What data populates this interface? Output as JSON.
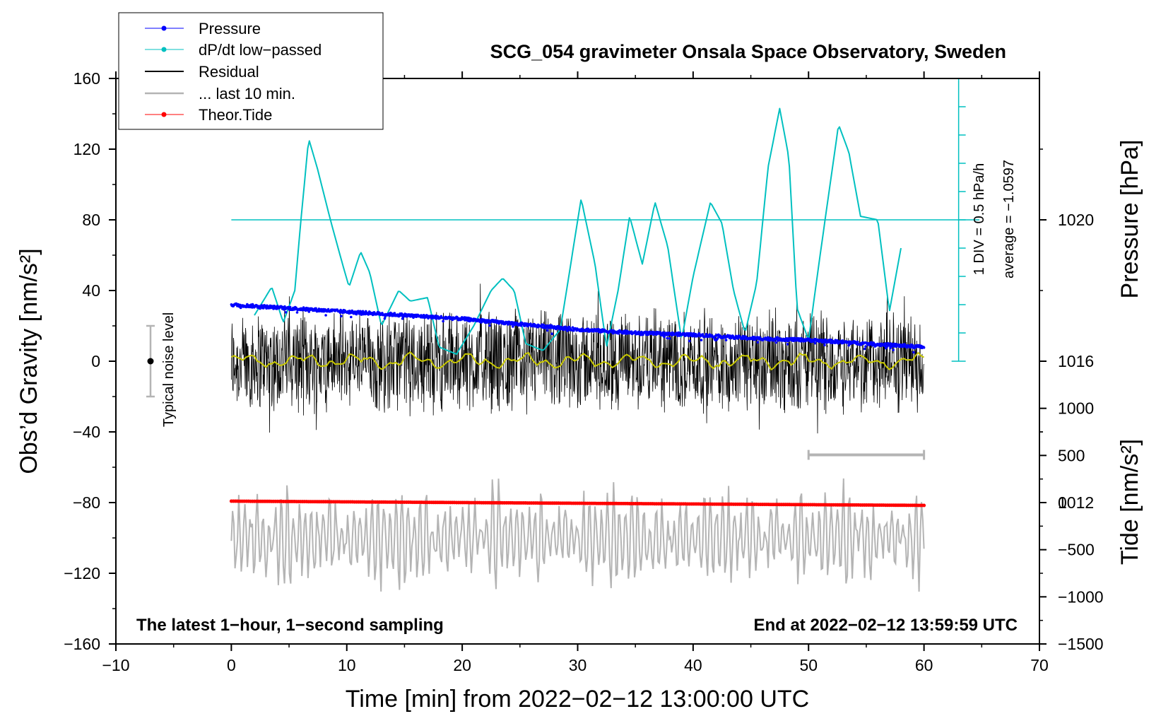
{
  "chart_data": {
    "type": "line",
    "title": "SCG_054 gravimeter Onsala Space Observatory, Sweden",
    "xlabel": "Time [min] from 2022−02−12 13:00:00 UTC",
    "ylabel_left": "Obs’d Gravity [nm/s²]",
    "ylabel_pressure": "Pressure [hPa]",
    "ylabel_tide": "Tide [nm/s²]",
    "xlim": [
      -10,
      70
    ],
    "ylim_gravity": [
      -160,
      160
    ],
    "ylim_pressure": [
      1008,
      1024
    ],
    "ylim_tide": [
      -1500,
      4500
    ],
    "x_ticks": [
      "−10",
      "0",
      "10",
      "20",
      "30",
      "40",
      "50",
      "60",
      "70"
    ],
    "y_ticks_gravity": [
      "160",
      "120",
      "80",
      "40",
      "0",
      "−40",
      "−80",
      "−120",
      "−160"
    ],
    "y_ticks_pressure": [
      "1020",
      "1016",
      "1012"
    ],
    "y_ticks_tide": [
      "1000",
      "500",
      "0",
      "−500",
      "−1000",
      "−1500"
    ],
    "legend": [
      "Pressure",
      "dP/dt low−passed",
      "Residual",
      "... last 10 min.",
      "Theor.Tide"
    ],
    "annotations": {
      "noise_label": "Typical noise level",
      "dpdt_scale": "1 DIV = 0.5 hPa/h",
      "dpdt_average": "average = −1.0597",
      "bottom_left": "The latest 1−hour, 1−second sampling",
      "bottom_right": "End at 2022−02−12 13:59:59 UTC"
    },
    "last_window_min": [
      50,
      60
    ],
    "noise_level_gravity": [
      -20,
      20
    ],
    "dpdt_baseline_gravity": 80,
    "dpdt_axis_range_gravity": [
      0,
      160
    ],
    "series": [
      {
        "name": "Pressure",
        "color": "#0000ff",
        "axis": "pressure",
        "x": [
          0,
          5,
          10,
          15,
          20,
          25,
          30,
          35,
          40,
          45,
          50,
          55,
          60
        ],
        "values": [
          1017.6,
          1017.5,
          1017.4,
          1017.3,
          1017.2,
          1017.05,
          1016.9,
          1016.8,
          1016.75,
          1016.65,
          1016.6,
          1016.5,
          1016.4
        ]
      },
      {
        "name": "dP/dt low−passed",
        "color": "#00c0c0",
        "axis": "gravity",
        "x": [
          2,
          3.5,
          4.5,
          5.5,
          6,
          6.7,
          7.5,
          8.5,
          9.5,
          10.2,
          11.2,
          12,
          13,
          14.5,
          15.5,
          17,
          18,
          19.5,
          21,
          22.5,
          23.5,
          24.5,
          25.5,
          27,
          28.5,
          30.3,
          31.5,
          32.5,
          33.5,
          34.5,
          35.6,
          36.7,
          37.8,
          39,
          40,
          41.5,
          42.5,
          43.5,
          44.5,
          45.5,
          46.5,
          47.5,
          48.3,
          49,
          50,
          51,
          52.6,
          53.5,
          54.5,
          56,
          57,
          58
        ],
        "values": [
          26,
          42,
          22,
          40,
          78,
          126,
          108,
          82,
          58,
          42,
          62,
          50,
          20,
          40,
          34,
          36,
          8,
          4,
          20,
          40,
          47,
          40,
          10,
          6,
          18,
          92,
          55,
          8,
          40,
          82,
          55,
          90,
          65,
          12,
          48,
          90,
          78,
          40,
          16,
          44,
          110,
          143,
          115,
          30,
          12,
          60,
          134,
          118,
          82,
          80,
          28,
          64
        ]
      },
      {
        "name": "Residual",
        "color": "#000000",
        "axis": "gravity",
        "x": [
          0,
          60
        ],
        "amplitude": 32,
        "running_mean_color": "#c8c800"
      },
      {
        "name": "... last 10 min.",
        "color": "#b4b4b4",
        "axis": "gravity",
        "x": [
          0,
          60
        ],
        "offset": -100,
        "amplitude": 25
      },
      {
        "name": "Theor.Tide",
        "color": "#ff0000",
        "axis": "tide",
        "x": [
          0,
          60
        ],
        "values": [
          15,
          -30
        ]
      }
    ]
  }
}
